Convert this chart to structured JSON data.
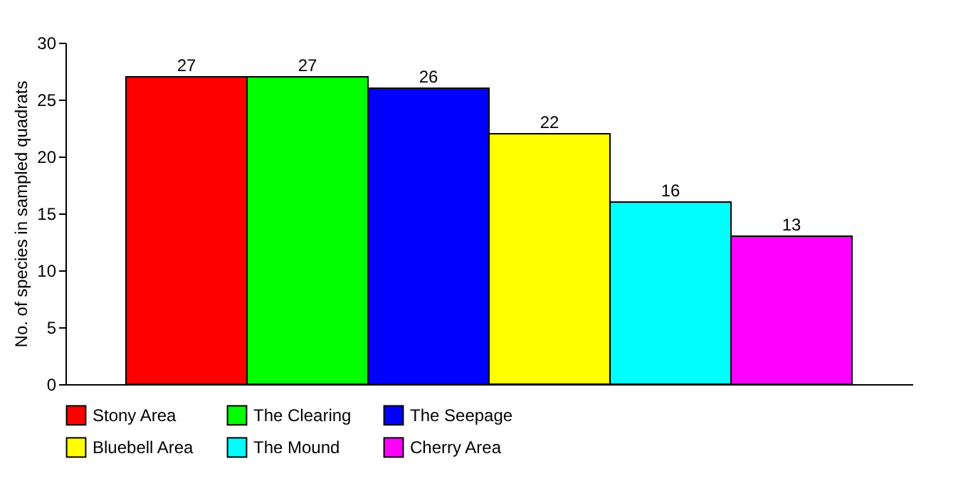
{
  "chart_data": {
    "type": "bar",
    "ylabel": "No. of species in sampled quadrats",
    "categories": [
      null,
      null,
      null,
      null,
      null,
      null
    ],
    "series": [
      {
        "name": "Stony Area",
        "color": "#ff0000",
        "values": [
          27,
          null,
          null,
          null,
          null,
          null
        ]
      },
      {
        "name": "The Clearing",
        "color": "#00ff00",
        "values": [
          null,
          27,
          null,
          null,
          null,
          null
        ]
      },
      {
        "name": "The Seepage",
        "color": "#0000ff",
        "values": [
          null,
          null,
          26,
          null,
          null,
          null
        ]
      },
      {
        "name": "Bluebell Area",
        "color": "#ffff00",
        "values": [
          null,
          null,
          null,
          22,
          null,
          null
        ]
      },
      {
        "name": "The Mound",
        "color": "#00ffff",
        "values": [
          null,
          null,
          null,
          null,
          16,
          null
        ]
      },
      {
        "name": "Cherry Area",
        "color": "#ff00ff",
        "values": [
          null,
          null,
          null,
          null,
          null,
          13
        ]
      }
    ],
    "ylim": [
      0,
      30
    ],
    "yticks": [
      0,
      5,
      10,
      15,
      20,
      25,
      30
    ],
    "grid": false,
    "legend": "bottom",
    "data_labels": true,
    "tick_labels": "y"
  }
}
